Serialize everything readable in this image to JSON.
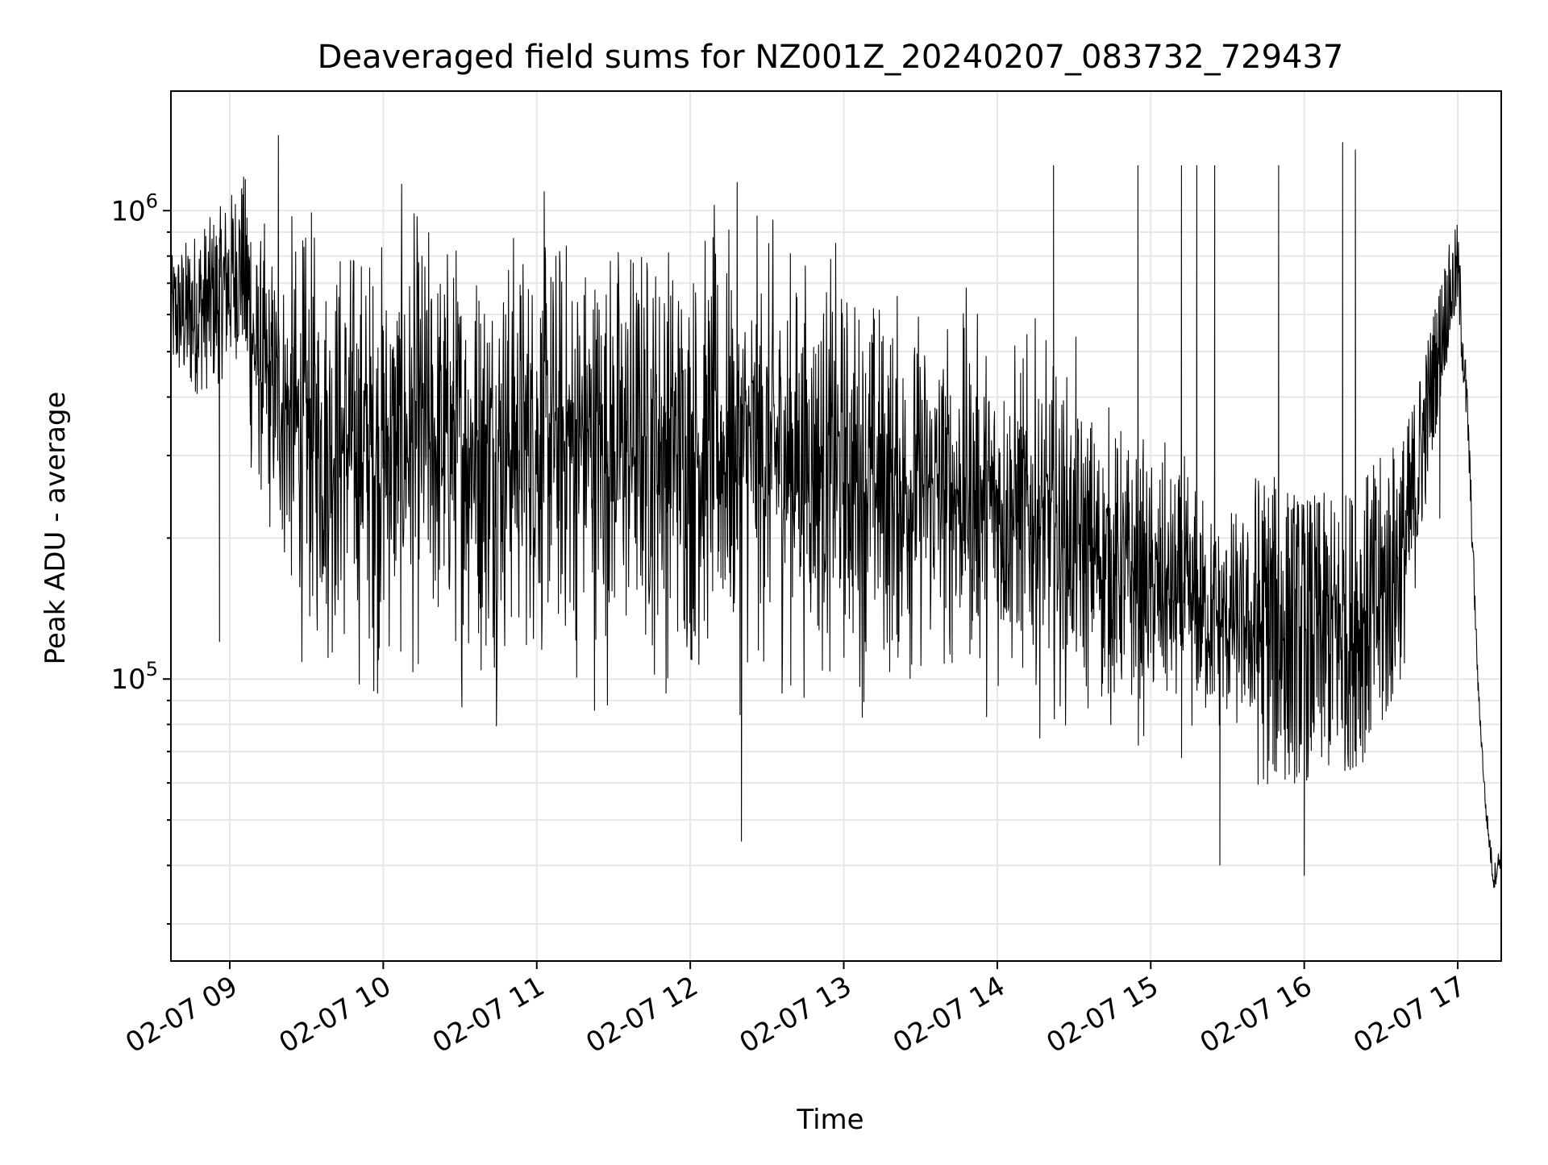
{
  "chart_data": {
    "type": "line",
    "title": "Deaveraged field sums for NZ001Z_20240207_083732_729437",
    "xlabel": "Time",
    "ylabel": "Peak ADU - average",
    "y_scale": "log",
    "grid": true,
    "colors": {
      "line": "#000000",
      "grid": "#e6e6e6",
      "axes": "#000000"
    },
    "xlim": [
      "2024-02-07 08:37",
      "2024-02-07 17:17"
    ],
    "ylim": [
      25000,
      1800000
    ],
    "x_ticks": [
      {
        "value": "2024-02-07 09:00",
        "label": "02-07 09"
      },
      {
        "value": "2024-02-07 10:00",
        "label": "02-07 10"
      },
      {
        "value": "2024-02-07 11:00",
        "label": "02-07 11"
      },
      {
        "value": "2024-02-07 12:00",
        "label": "02-07 12"
      },
      {
        "value": "2024-02-07 13:00",
        "label": "02-07 13"
      },
      {
        "value": "2024-02-07 14:00",
        "label": "02-07 14"
      },
      {
        "value": "2024-02-07 15:00",
        "label": "02-07 15"
      },
      {
        "value": "2024-02-07 16:00",
        "label": "02-07 16"
      },
      {
        "value": "2024-02-07 17:00",
        "label": "02-07 17"
      }
    ],
    "y_ticks": [
      {
        "value": 100000,
        "base": "10",
        "exp": "5"
      },
      {
        "value": 1000000,
        "base": "10",
        "exp": "6"
      }
    ],
    "series": [
      {
        "x": [
          "2024-02-07 08:37",
          "2024-02-07 08:45",
          "2024-02-07 08:55",
          "2024-02-07 09:05",
          "2024-02-07 09:10",
          "2024-02-07 09:15",
          "2024-02-07 09:20",
          "2024-02-07 09:25",
          "2024-02-07 09:30",
          "2024-02-07 09:35",
          "2024-02-07 09:45",
          "2024-02-07 10:00",
          "2024-02-07 10:15",
          "2024-02-07 10:30",
          "2024-02-07 10:45",
          "2024-02-07 11:00",
          "2024-02-07 11:15",
          "2024-02-07 11:30",
          "2024-02-07 11:45",
          "2024-02-07 12:00",
          "2024-02-07 12:15",
          "2024-02-07 12:30",
          "2024-02-07 12:45",
          "2024-02-07 13:00",
          "2024-02-07 13:15",
          "2024-02-07 13:30",
          "2024-02-07 13:45",
          "2024-02-07 14:00",
          "2024-02-07 14:15",
          "2024-02-07 14:30",
          "2024-02-07 14:45",
          "2024-02-07 15:00",
          "2024-02-07 15:15",
          "2024-02-07 15:30",
          "2024-02-07 15:45",
          "2024-02-07 16:00",
          "2024-02-07 16:15",
          "2024-02-07 16:30",
          "2024-02-07 16:40",
          "2024-02-07 16:50",
          "2024-02-07 16:55",
          "2024-02-07 17:00",
          "2024-02-07 17:04",
          "2024-02-07 17:08",
          "2024-02-07 17:11",
          "2024-02-07 17:14",
          "2024-02-07 17:17"
        ],
        "low": [
          450000,
          400000,
          420000,
          500000,
          200000,
          150000,
          120000,
          90000,
          80000,
          75000,
          70000,
          68000,
          72000,
          70000,
          68000,
          75000,
          70000,
          68000,
          72000,
          70000,
          68000,
          70000,
          72000,
          70000,
          68000,
          72000,
          75000,
          68000,
          70000,
          65000,
          60000,
          60000,
          58000,
          58000,
          58000,
          60000,
          62000,
          70000,
          110000,
          300000,
          450000,
          600000,
          300000,
          90000,
          50000,
          35000,
          40000
        ],
        "high": [
          800000,
          900000,
          1000000,
          1200000,
          1200000,
          1200000,
          1300000,
          1350000,
          1350000,
          1400000,
          1450000,
          1400000,
          1450000,
          1450000,
          1450000,
          1450000,
          1450000,
          1450000,
          1450000,
          1400000,
          1350000,
          1300000,
          1200000,
          1100000,
          1000000,
          900000,
          850000,
          800000,
          700000,
          600000,
          500000,
          400000,
          350000,
          300000,
          280000,
          250000,
          250000,
          300000,
          350000,
          600000,
          800000,
          950000,
          400000,
          100000,
          55000,
          40000,
          45000
        ],
        "spikes": [
          {
            "x": "2024-02-07 08:56",
            "y": 120000
          },
          {
            "x": "2024-02-07 09:19",
            "y": 1450000
          },
          {
            "x": "2024-02-07 12:20",
            "y": 45000
          },
          {
            "x": "2024-02-07 14:22",
            "y": 1250000
          },
          {
            "x": "2024-02-07 14:55",
            "y": 1250000
          },
          {
            "x": "2024-02-07 15:12",
            "y": 1250000
          },
          {
            "x": "2024-02-07 15:18",
            "y": 1250000
          },
          {
            "x": "2024-02-07 15:25",
            "y": 1250000
          },
          {
            "x": "2024-02-07 15:50",
            "y": 1250000
          },
          {
            "x": "2024-02-07 16:00",
            "y": 38000
          },
          {
            "x": "2024-02-07 16:15",
            "y": 1400000
          },
          {
            "x": "2024-02-07 16:20",
            "y": 1350000
          },
          {
            "x": "2024-02-07 15:27",
            "y": 40000
          },
          {
            "x": "2024-02-07 16:53",
            "y": 220000
          }
        ]
      }
    ]
  }
}
